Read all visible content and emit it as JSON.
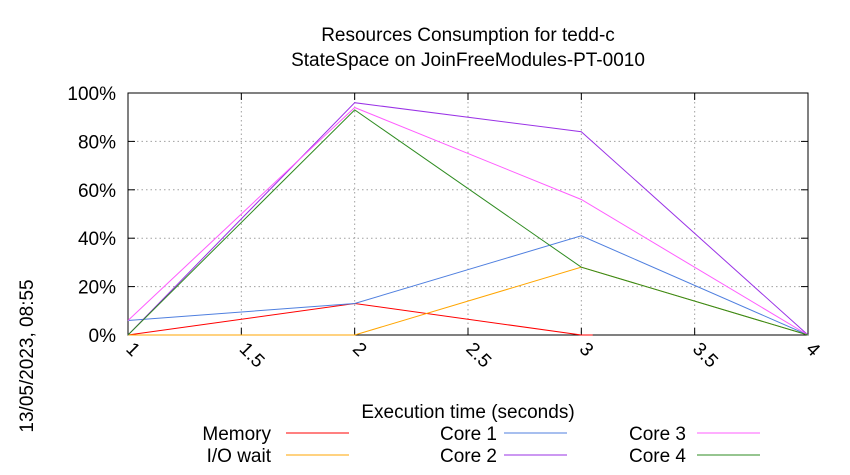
{
  "chart_data": {
    "type": "line",
    "title": [
      "Resources Consumption for tedd-c",
      "StateSpace on JoinFreeModules-PT-0010"
    ],
    "side_label": "13/05/2023, 08:55",
    "xlabel": "Execution time (seconds)",
    "ylabel": "",
    "xlim": [
      1,
      4
    ],
    "ylim": [
      0,
      100
    ],
    "x_ticks": [
      "1",
      "1.5",
      "2",
      "2.5",
      "3",
      "3.5",
      "4"
    ],
    "y_ticks": [
      "0%",
      "20%",
      "40%",
      "60%",
      "80%",
      "100%"
    ],
    "grid": true,
    "legend_position": "bottom",
    "x": [
      1,
      2,
      3,
      4
    ],
    "series": [
      {
        "name": "Memory",
        "color": "#ff0000",
        "x": [
          1,
          2,
          3,
          3.05
        ],
        "values": [
          0,
          13,
          0,
          0
        ]
      },
      {
        "name": "I/O wait",
        "color": "#ffa500",
        "x": [
          1,
          2,
          3,
          4
        ],
        "values": [
          0,
          0,
          28,
          0
        ]
      },
      {
        "name": "Core 1",
        "color": "#4f7fdf",
        "x": [
          1,
          2,
          3,
          4
        ],
        "values": [
          6,
          13,
          41,
          0
        ]
      },
      {
        "name": "Core 2",
        "color": "#9a32e6",
        "x": [
          1,
          2,
          3,
          4
        ],
        "values": [
          0,
          96,
          84,
          0
        ]
      },
      {
        "name": "Core 3",
        "color": "#ff5cff",
        "x": [
          1,
          2,
          3,
          4
        ],
        "values": [
          6,
          94,
          56,
          0
        ]
      },
      {
        "name": "Core 4",
        "color": "#2e8b20",
        "x": [
          1,
          2,
          3,
          4
        ],
        "values": [
          0,
          93,
          28,
          0
        ]
      }
    ]
  }
}
